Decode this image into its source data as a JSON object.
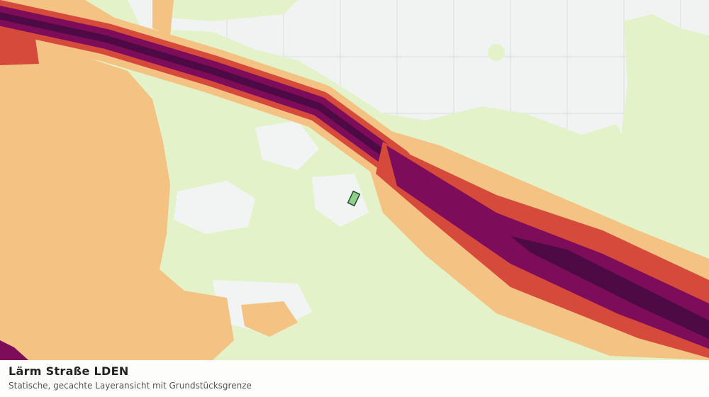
{
  "info_panel": {
    "title": "Lärm Straße LDEN",
    "subtitle": "Statische, gecachte Layeransicht mit Grundstücksgrenze"
  }
}
